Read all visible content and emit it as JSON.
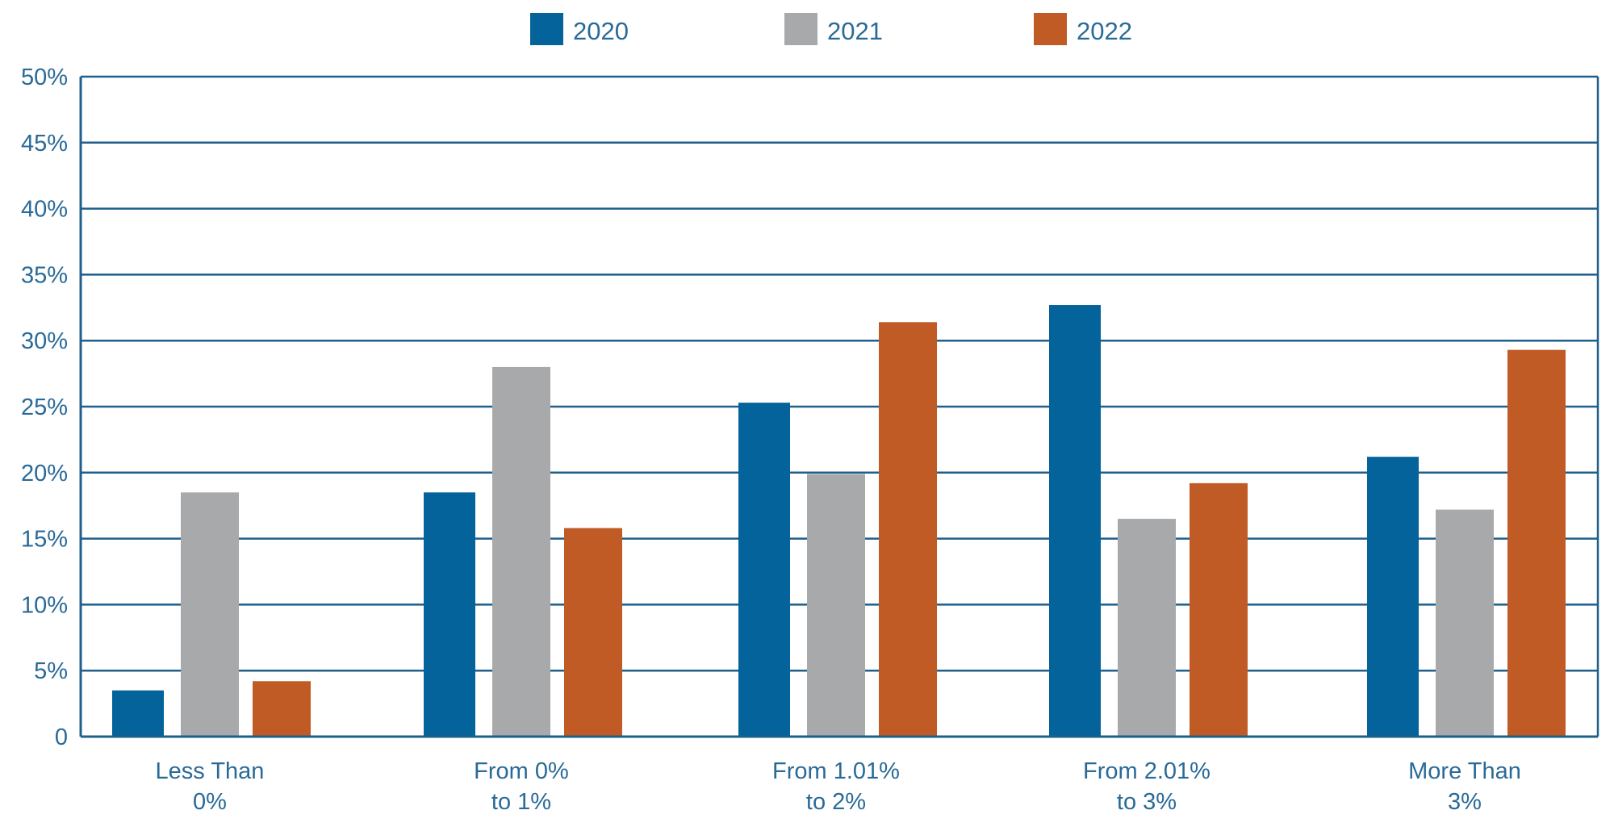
{
  "colors": {
    "axis": "#1f5f8b",
    "text": "#2a6a98",
    "2020": "#03639a",
    "2021": "#a8a9ab",
    "2022": "#c05b26"
  },
  "chart_data": {
    "type": "bar",
    "title": "",
    "xlabel": "",
    "ylabel": "",
    "categories": [
      [
        "Less Than",
        "0%"
      ],
      [
        "From 0%",
        "to 1%"
      ],
      [
        "From 1.01%",
        "to 2%"
      ],
      [
        "From 2.01%",
        "to 3%"
      ],
      [
        "More Than",
        "3%"
      ]
    ],
    "series": [
      {
        "name": "2020",
        "values": [
          3.5,
          18.5,
          25.3,
          32.7,
          21.2
        ]
      },
      {
        "name": "2021",
        "values": [
          18.5,
          28.0,
          19.9,
          16.5,
          17.2
        ]
      },
      {
        "name": "2022",
        "values": [
          4.2,
          15.8,
          31.4,
          19.2,
          29.3
        ]
      }
    ],
    "ylim": [
      0,
      50
    ],
    "yticks": [
      0,
      5,
      10,
      15,
      20,
      25,
      30,
      35,
      40,
      45,
      50
    ],
    "ytick_labels": [
      "0",
      "5%",
      "10%",
      "15%",
      "20%",
      "25%",
      "30%",
      "35%",
      "40%",
      "45%",
      "50%"
    ],
    "grid": true,
    "legend_position": "top-center"
  }
}
